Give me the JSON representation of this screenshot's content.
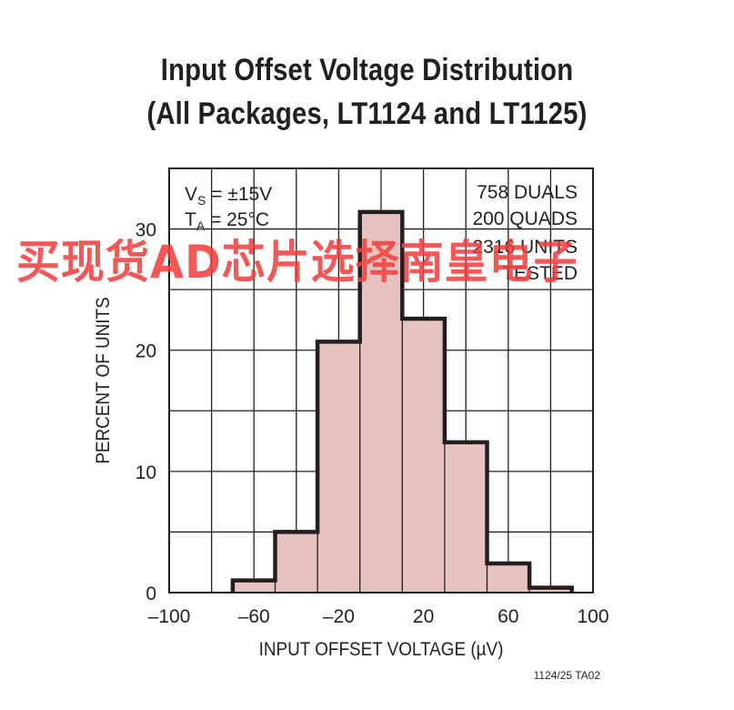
{
  "title_line1": "Input Offset Voltage Distribution",
  "title_line2": "(All Packages, LT1124 and LT1125)",
  "figure_code": "1124/25 TA02",
  "watermark_text": "买现货AD芯片选择南皇电子",
  "conditions": {
    "vs_main": "V",
    "vs_sub": "S",
    "vs_rest": " = ±15V",
    "ta_main": "T",
    "ta_sub": "A",
    "ta_rest": " = 25°C"
  },
  "sample_info": [
    "758 DUALS",
    "200 QUADS",
    "2316 UNITS",
    "TESTED"
  ],
  "chart_data": {
    "type": "bar",
    "title": "Input Offset Voltage Distribution (All Packages, LT1124 and LT1125)",
    "xlabel": "INPUT OFFSET VOLTAGE (µV)",
    "ylabel": "PERCENT OF UNITS",
    "xlim": [
      -100,
      100
    ],
    "ylim": [
      0,
      35
    ],
    "xticks": [
      -100,
      -60,
      -20,
      20,
      60,
      100
    ],
    "xtick_labels": [
      "–100",
      "–60",
      "–20",
      "20",
      "60",
      "100"
    ],
    "yticks": [
      0,
      10,
      20,
      30
    ],
    "grid": true,
    "bins": [
      {
        "x0": -70,
        "x1": -50,
        "value": 1.0
      },
      {
        "x0": -50,
        "x1": -30,
        "value": 5.0
      },
      {
        "x0": -30,
        "x1": -10,
        "value": 20.7
      },
      {
        "x0": -10,
        "x1": 10,
        "value": 31.4
      },
      {
        "x0": 10,
        "x1": 30,
        "value": 22.6
      },
      {
        "x0": 30,
        "x1": 50,
        "value": 12.4
      },
      {
        "x0": 50,
        "x1": 70,
        "value": 2.4
      },
      {
        "x0": 70,
        "x1": 90,
        "value": 0.4
      }
    ],
    "colors": {
      "fill": "#e6c3bf",
      "outline": "#231f20",
      "grid": "#231f20"
    }
  }
}
